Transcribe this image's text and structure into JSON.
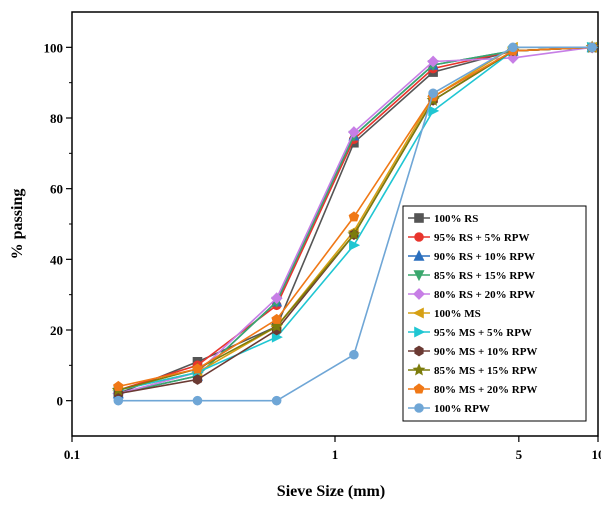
{
  "chart_data": {
    "type": "line",
    "title": "",
    "xlabel": "Sieve Size (mm)",
    "ylabel": "% passing",
    "xscale": "log",
    "xlim": [
      0.1,
      10
    ],
    "ylim": [
      -10,
      110
    ],
    "xticks": [
      {
        "value": 0.1,
        "label": "0.1"
      },
      {
        "value": 1,
        "label": "1"
      },
      {
        "value": 5,
        "label": "5"
      },
      {
        "value": 10,
        "label": "10"
      }
    ],
    "yticks": [
      {
        "value": 0,
        "label": "0"
      },
      {
        "value": 20,
        "label": "20"
      },
      {
        "value": 40,
        "label": "40"
      },
      {
        "value": 60,
        "label": "60"
      },
      {
        "value": 80,
        "label": "80"
      },
      {
        "value": 100,
        "label": "100"
      }
    ],
    "x": [
      0.15,
      0.3,
      0.6,
      1.18,
      2.36,
      4.75,
      9.5
    ],
    "grid": false,
    "legend_position": "bottom-right",
    "series": [
      {
        "name": "100% RS",
        "color": "#555555",
        "marker": "square",
        "values": [
          2,
          11,
          21,
          73,
          93,
          99,
          100
        ]
      },
      {
        "name": "95% RS + 5% RPW",
        "color": "#e8342c",
        "marker": "circle",
        "values": [
          3,
          10,
          27,
          74,
          94,
          99,
          100
        ]
      },
      {
        "name": "90% RS + 10% RPW",
        "color": "#2a6fbe",
        "marker": "triangle-up",
        "values": [
          2,
          7,
          28,
          75,
          95,
          99,
          100
        ]
      },
      {
        "name": "85% RS + 15% RPW",
        "color": "#3aa76d",
        "marker": "triangle-down",
        "values": [
          2,
          7,
          28,
          75,
          95,
          99,
          100
        ]
      },
      {
        "name": "80% RS + 20% RPW",
        "color": "#c77ee6",
        "marker": "diamond",
        "values": [
          2,
          8,
          29,
          76,
          96,
          97,
          100
        ]
      },
      {
        "name": "100% MS",
        "color": "#d6a013",
        "marker": "triangle-left",
        "values": [
          3,
          8,
          21,
          48,
          86,
          100,
          100
        ]
      },
      {
        "name": "95% MS + 5% RPW",
        "color": "#1fc6d2",
        "marker": "triangle-right",
        "values": [
          3,
          8,
          18,
          44,
          82,
          99,
          100
        ]
      },
      {
        "name": "90% MS + 10% RPW",
        "color": "#6b3a33",
        "marker": "hexagon",
        "values": [
          2,
          6,
          20,
          47,
          85,
          99,
          100
        ]
      },
      {
        "name": "85% MS + 15% RPW",
        "color": "#7c7c0c",
        "marker": "star",
        "values": [
          3,
          9,
          21,
          47,
          85,
          99,
          100
        ]
      },
      {
        "name": "80% MS + 20% RPW",
        "color": "#f07816",
        "marker": "pentagon",
        "values": [
          4,
          9,
          23,
          52,
          86,
          99,
          100
        ]
      },
      {
        "name": "100% RPW",
        "color": "#6fa6d6",
        "marker": "circle",
        "values": [
          0,
          0,
          0,
          13,
          87,
          100,
          100
        ]
      }
    ]
  }
}
